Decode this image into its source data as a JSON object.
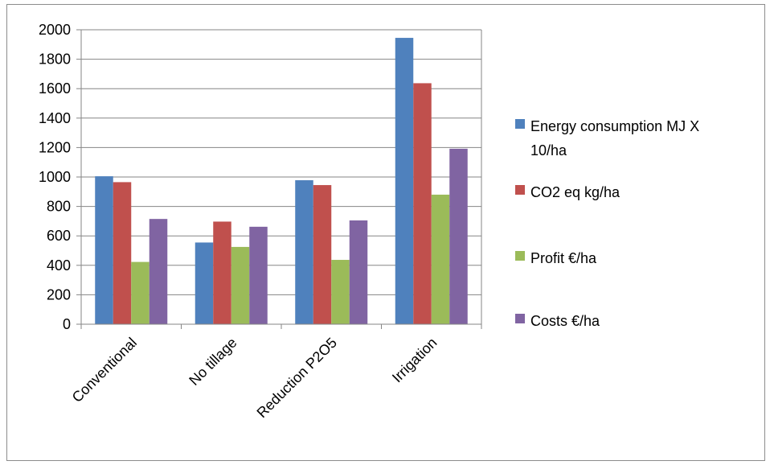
{
  "chart_data": {
    "type": "bar",
    "categories": [
      "Conventional",
      "No tillage",
      "Reduction P2O5",
      "Irrigation"
    ],
    "series": [
      {
        "name": "Energy consumption MJ X 10/ha",
        "legend_lines": [
          "Energy consumption MJ X",
          "10/ha"
        ],
        "color": "#4f81bd",
        "values": [
          1005,
          555,
          978,
          1945
        ]
      },
      {
        "name": "CO2 eq kg/ha",
        "legend_lines": [
          "CO2 eq kg/ha"
        ],
        "color": "#c0504d",
        "values": [
          965,
          697,
          945,
          1637
        ]
      },
      {
        "name": "Profit €/ha",
        "legend_lines": [
          "Profit €/ha"
        ],
        "color": "#9bbb59",
        "values": [
          423,
          525,
          437,
          880
        ]
      },
      {
        "name": "Costs €/ha",
        "legend_lines": [
          "Costs €/ha"
        ],
        "color": "#8064a2",
        "values": [
          715,
          662,
          705,
          1192
        ]
      }
    ],
    "y_ticks": [
      "0",
      "200",
      "400",
      "600",
      "800",
      "1000",
      "1200",
      "1400",
      "1600",
      "1800",
      "2000"
    ],
    "ylim": [
      0,
      2000
    ],
    "grid": true,
    "legend_position": "right",
    "title": "",
    "xlabel": "",
    "ylabel": ""
  }
}
